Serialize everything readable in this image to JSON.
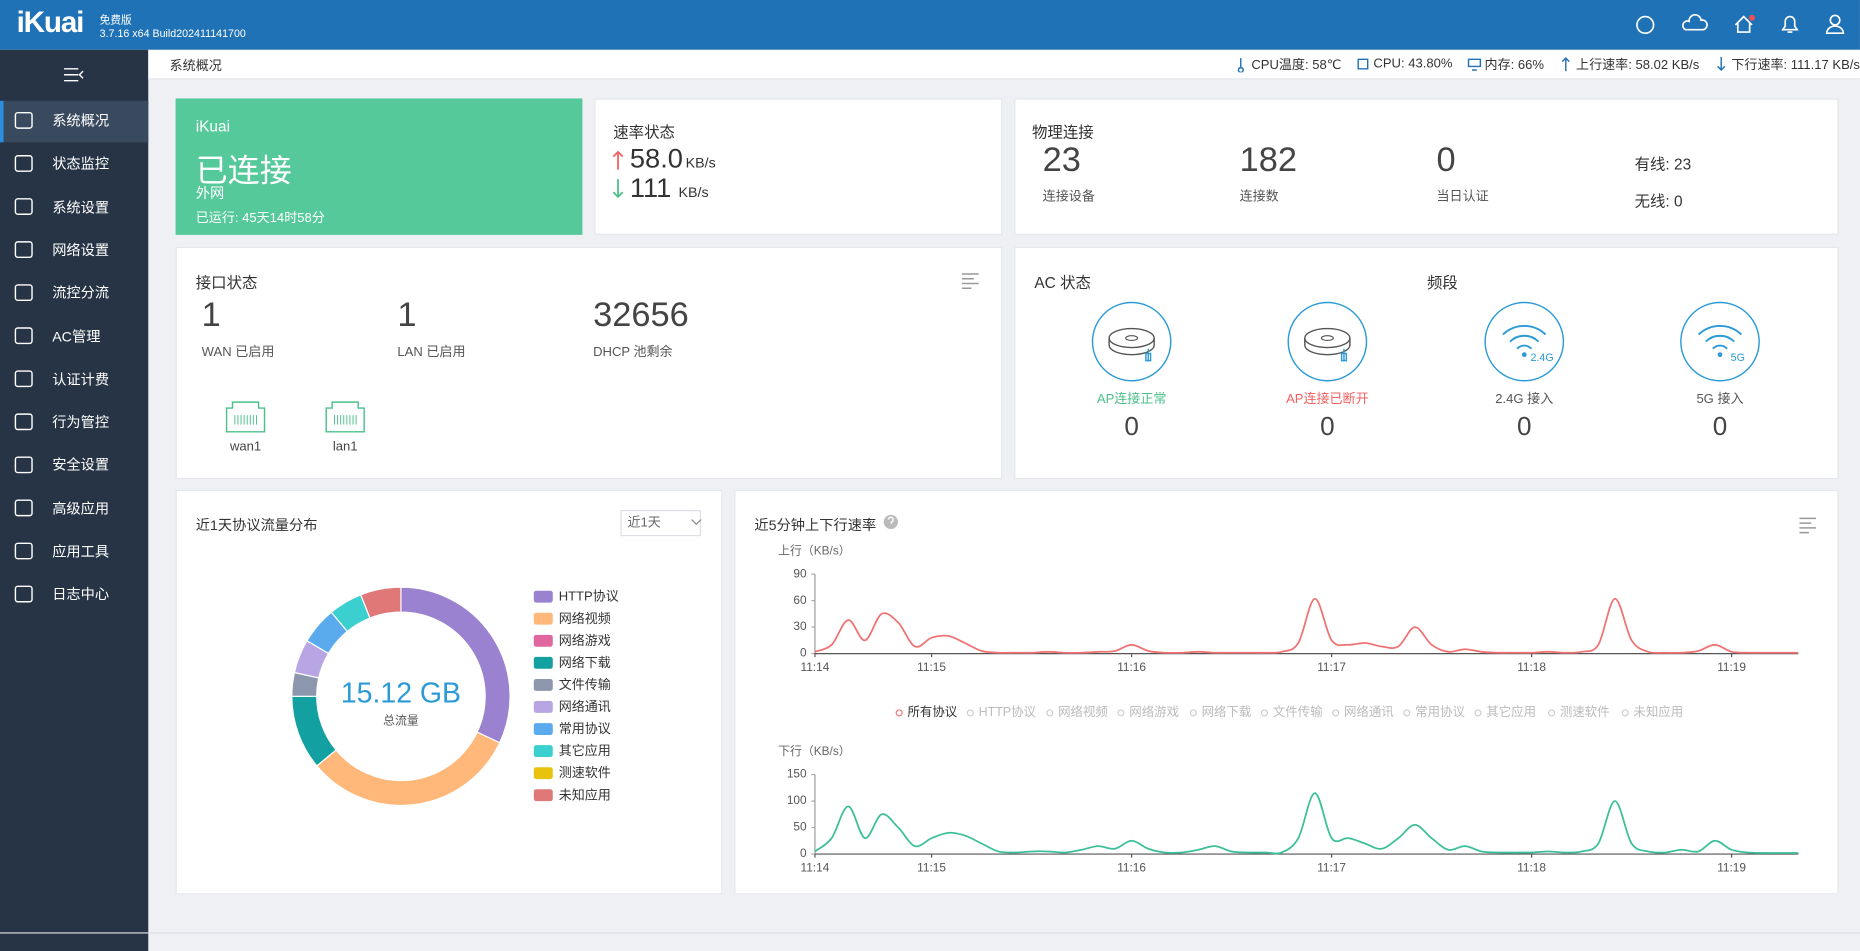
{
  "header": {
    "logo": "iKuai",
    "edition": "免费版",
    "version": "3.7.16 x64 Build202411141700"
  },
  "sidebar": {
    "items": [
      "系统概况",
      "状态监控",
      "系统设置",
      "网络设置",
      "流控分流",
      "AC管理",
      "认证计费",
      "行为管控",
      "安全设置",
      "高级应用",
      "应用工具",
      "日志中心"
    ]
  },
  "topbar": {
    "breadcrumb": "系统概况",
    "stats": [
      "CPU温度: 58℃",
      "CPU: 43.80%",
      "内存: 66%",
      "上行速率: 58.02 KB/s",
      "下行速率: 111.17 KB/s"
    ]
  },
  "wan_card": {
    "brand": "iKuai",
    "status": "已连接",
    "network": "外网",
    "uptime": "已运行: 45天14时58分"
  },
  "speed_card": {
    "title": "速率状态",
    "up": "58.0",
    "down": "111",
    "unit": "KB/s"
  },
  "physical_card": {
    "title": "物理连接",
    "stats": [
      {
        "value": "23",
        "label": "连接设备"
      },
      {
        "value": "182",
        "label": "连接数"
      },
      {
        "value": "0",
        "label": "当日认证"
      }
    ],
    "wired": "有线: 23",
    "wireless": "无线: 0"
  },
  "interface_card": {
    "title": "接口状态",
    "stats": [
      {
        "value": "1",
        "label": "WAN 已启用"
      },
      {
        "value": "1",
        "label": "LAN 已启用"
      },
      {
        "value": "32656",
        "label": "DHCP 池剩余"
      }
    ],
    "ports": [
      "wan1",
      "lan1"
    ]
  },
  "ac_card": {
    "title": "AC 状态",
    "band_title": "频段",
    "items": [
      {
        "label": "AP连接正常",
        "value": "0",
        "color": "#4cc08a"
      },
      {
        "label": "AP连接已断开",
        "value": "0",
        "color": "#f06262"
      },
      {
        "label": "2.4G 接入",
        "value": "0",
        "color": "#555555",
        "badge": "2.4G"
      },
      {
        "label": "5G 接入",
        "value": "0",
        "color": "#555555",
        "badge": "5G"
      }
    ]
  },
  "traffic_panel": {
    "range": "近1天"
  },
  "rate_panel": {
    "title": "近5分钟上下行速率",
    "legend": [
      "所有协议",
      "HTTP协议",
      "网络视频",
      "网络游戏",
      "网络下载",
      "文件传输",
      "网络通讯",
      "常用协议",
      "其它应用",
      "测速软件",
      "未知应用"
    ]
  },
  "chart_data": [
    {
      "type": "pie",
      "title": "近1天协议流量分布",
      "center_value": "15.12 GB",
      "center_label": "总流量",
      "categories": [
        "HTTP协议",
        "网络视频",
        "网络游戏",
        "网络下载",
        "文件传输",
        "网络通讯",
        "常用协议",
        "其它应用",
        "测速软件",
        "未知应用"
      ],
      "values": [
        32,
        32,
        0,
        11,
        3.5,
        5,
        5.5,
        5,
        0,
        6
      ],
      "colors": [
        "#9b82d0",
        "#ffb77a",
        "#e066a0",
        "#12a0a0",
        "#8c97ad",
        "#b8a5e3",
        "#5aaaee",
        "#3ccfcf",
        "#e8c20d",
        "#e07878"
      ]
    },
    {
      "type": "line",
      "y_label": "上行（KB/s）",
      "color": "#f07373",
      "grid": false,
      "ylim": [
        0,
        90
      ],
      "yticks": [
        0,
        30,
        60,
        90
      ],
      "categories": [
        "11:14",
        null,
        null,
        null,
        null,
        null,
        null,
        "11:15",
        null,
        null,
        null,
        null,
        null,
        null,
        null,
        null,
        null,
        null,
        null,
        "11:16",
        null,
        null,
        null,
        null,
        null,
        null,
        null,
        null,
        null,
        null,
        null,
        "11:17",
        null,
        null,
        null,
        null,
        null,
        null,
        null,
        null,
        null,
        null,
        null,
        "11:18",
        null,
        null,
        null,
        null,
        null,
        null,
        null,
        null,
        null,
        null,
        null,
        "11:19",
        null,
        null,
        null,
        null
      ],
      "values": [
        2,
        10,
        38,
        15,
        45,
        35,
        8,
        18,
        20,
        12,
        3,
        1,
        1,
        1,
        2,
        1,
        1,
        2,
        3,
        10,
        3,
        1,
        1,
        2,
        1,
        1,
        1,
        1,
        2,
        12,
        62,
        15,
        10,
        12,
        8,
        8,
        30,
        10,
        2,
        5,
        2,
        1,
        1,
        1,
        2,
        1,
        2,
        10,
        62,
        15,
        2,
        1,
        1,
        3,
        10,
        2,
        1,
        1,
        1,
        1
      ]
    },
    {
      "type": "line",
      "y_label": "下行（KB/s）",
      "color": "#3dbf9a",
      "grid": false,
      "ylim": [
        0,
        150
      ],
      "yticks": [
        0,
        50,
        100,
        150
      ],
      "categories": [
        "11:14",
        null,
        null,
        null,
        null,
        null,
        null,
        "11:15",
        null,
        null,
        null,
        null,
        null,
        null,
        null,
        null,
        null,
        null,
        null,
        "11:16",
        null,
        null,
        null,
        null,
        null,
        null,
        null,
        null,
        null,
        null,
        null,
        "11:17",
        null,
        null,
        null,
        null,
        null,
        null,
        null,
        null,
        null,
        null,
        null,
        "11:18",
        null,
        null,
        null,
        null,
        null,
        null,
        null,
        null,
        null,
        null,
        null,
        "11:19",
        null,
        null,
        null,
        null
      ],
      "values": [
        5,
        30,
        90,
        30,
        75,
        50,
        15,
        30,
        40,
        35,
        20,
        5,
        3,
        5,
        5,
        3,
        8,
        15,
        10,
        25,
        10,
        3,
        3,
        8,
        15,
        5,
        3,
        3,
        3,
        30,
        115,
        30,
        30,
        20,
        10,
        30,
        55,
        30,
        8,
        15,
        5,
        3,
        3,
        3,
        5,
        3,
        5,
        20,
        100,
        20,
        5,
        3,
        8,
        5,
        25,
        8,
        3,
        2,
        2,
        2
      ]
    }
  ]
}
